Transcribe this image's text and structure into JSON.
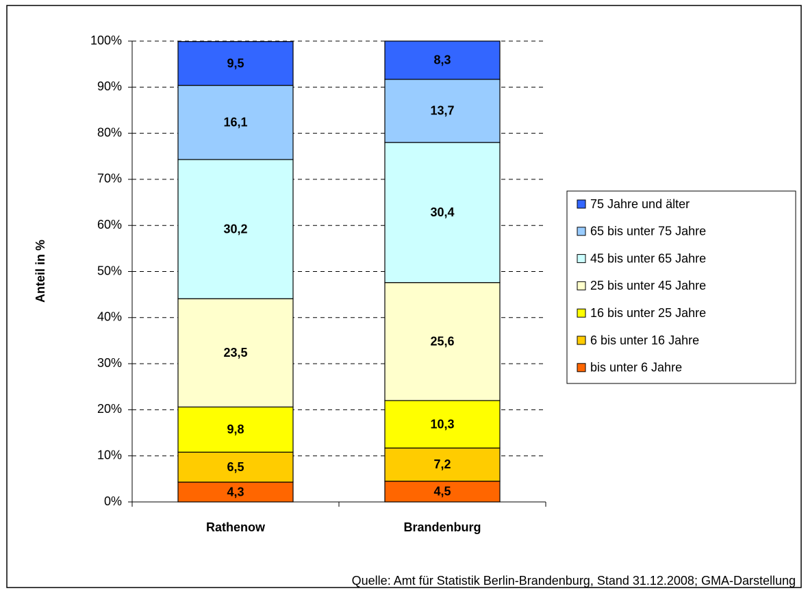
{
  "chart_data": {
    "type": "stacked_bar",
    "y_axis_label": "Anteil in %",
    "source": "Quelle: Amt für Statistik Berlin-Brandenburg, Stand 31.12.2008; GMA-Darstellung",
    "categories": [
      "Rathenow",
      "Brandenburg"
    ],
    "ylim": [
      0,
      100
    ],
    "yticks": [
      {
        "value": 0,
        "label": "0%"
      },
      {
        "value": 10,
        "label": "10%"
      },
      {
        "value": 20,
        "label": "20%"
      },
      {
        "value": 30,
        "label": "30%"
      },
      {
        "value": 40,
        "label": "40%"
      },
      {
        "value": 50,
        "label": "50%"
      },
      {
        "value": 60,
        "label": "60%"
      },
      {
        "value": 70,
        "label": "70%"
      },
      {
        "value": 80,
        "label": "80%"
      },
      {
        "value": 90,
        "label": "90%"
      },
      {
        "value": 100,
        "label": "100%"
      }
    ],
    "grid": true,
    "legend": "right",
    "series": [
      {
        "name": "bis unter 6 Jahre",
        "color": "#ff6600",
        "label_color": "#000000",
        "values": [
          4.3,
          4.5
        ],
        "value_labels": [
          "4,3",
          "4,5"
        ]
      },
      {
        "name": "6 bis unter 16 Jahre",
        "color": "#ffcc00",
        "label_color": "#000000",
        "values": [
          6.5,
          7.2
        ],
        "value_labels": [
          "6,5",
          "7,2"
        ]
      },
      {
        "name": "16 bis unter 25 Jahre",
        "color": "#ffff00",
        "label_color": "#000000",
        "values": [
          9.8,
          10.3
        ],
        "value_labels": [
          "9,8",
          "10,3"
        ]
      },
      {
        "name": "25 bis unter 45 Jahre",
        "color": "#ffffcc",
        "label_color": "#000000",
        "values": [
          23.5,
          25.6
        ],
        "value_labels": [
          "23,5",
          "25,6"
        ]
      },
      {
        "name": "45 bis unter 65 Jahre",
        "color": "#ccffff",
        "label_color": "#000000",
        "values": [
          30.2,
          30.4
        ],
        "value_labels": [
          "30,2",
          "30,4"
        ]
      },
      {
        "name": "65 bis unter 75 Jahre",
        "color": "#99ccff",
        "label_color": "#000000",
        "values": [
          16.1,
          13.7
        ],
        "value_labels": [
          "16,1",
          "13,7"
        ]
      },
      {
        "name": "75 Jahre und älter",
        "color": "#3366ff",
        "label_color": "#ffffff",
        "values": [
          9.5,
          8.3
        ],
        "value_labels": [
          "9,5",
          "8,3"
        ]
      }
    ]
  }
}
